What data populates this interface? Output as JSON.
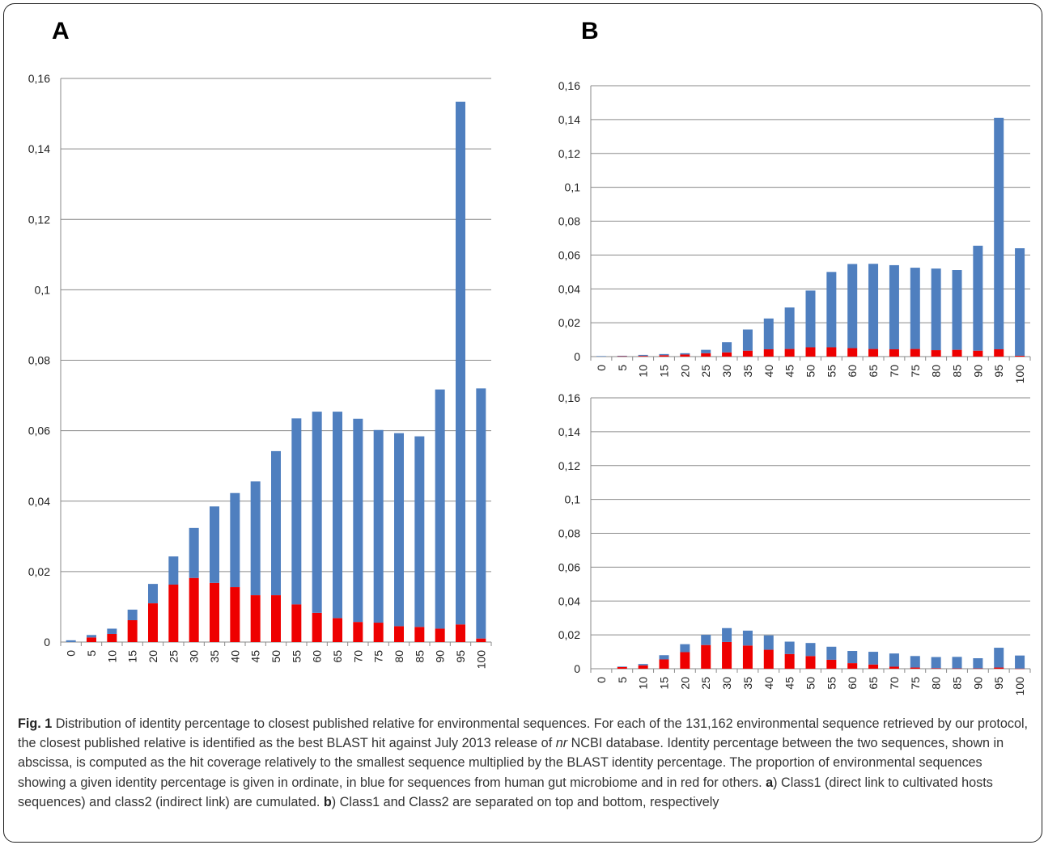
{
  "panels": {
    "a_letter": "A",
    "b_letter": "B"
  },
  "colors": {
    "blue": "#4f7fbf",
    "red": "#ee0000",
    "grid": "#8a8a8a",
    "axis": "#8a8a8a"
  },
  "caption": {
    "fig_label": "Fig. 1",
    "text_1": " Distribution of identity percentage to closest published relative for environmental sequences. For each of the 131,162 environmental sequence retrieved by our protocol, the closest published relative is identified as the best BLAST hit against July 2013 release of ",
    "nr_italic": "nr",
    "text_2": " NCBI database. Identity percentage between the two sequences, shown in abscissa, is computed as the hit coverage relatively to the smallest sequence multiplied by the BLAST identity percentage. The proportion of environmental sequences showing a given identity percentage is given in ordinate, in blue for sequences from human gut microbiome and in red for others. ",
    "a_label": "a",
    "a_text": ") Class1 (direct link to cultivated hosts sequences) and class2 (indirect link) are cumulated. ",
    "b_label": "b",
    "b_text": ") Class1 and Class2 are separated on top and bottom, respectively"
  },
  "chart_data": [
    {
      "panel": "A",
      "type": "bar",
      "stacked": true,
      "categories": [
        "0",
        "5",
        "10",
        "15",
        "20",
        "25",
        "30",
        "35",
        "40",
        "45",
        "50",
        "55",
        "60",
        "65",
        "70",
        "75",
        "80",
        "85",
        "90",
        "95",
        "100"
      ],
      "series": [
        {
          "color": "red",
          "values": [
            0.0,
            0.0013,
            0.0023,
            0.0062,
            0.011,
            0.0163,
            0.0182,
            0.0168,
            0.0156,
            0.0133,
            0.0133,
            0.0107,
            0.0083,
            0.0068,
            0.0057,
            0.0055,
            0.0045,
            0.0043,
            0.0038,
            0.005,
            0.001
          ]
        },
        {
          "color": "blue",
          "values": [
            0.0005,
            0.0007,
            0.0015,
            0.003,
            0.0055,
            0.008,
            0.0142,
            0.0217,
            0.0267,
            0.0323,
            0.0409,
            0.0528,
            0.0571,
            0.0586,
            0.0577,
            0.0547,
            0.0548,
            0.0541,
            0.0679,
            0.1484,
            0.071
          ]
        }
      ],
      "yticks": [
        "0",
        "0,02",
        "0,04",
        "0,06",
        "0,08",
        "0,1",
        "0,12",
        "0,14",
        "0,16"
      ],
      "ylim": [
        0,
        0.16
      ],
      "grid": true
    },
    {
      "panel": "B-top",
      "type": "bar",
      "stacked": true,
      "categories": [
        "0",
        "5",
        "10",
        "15",
        "20",
        "25",
        "30",
        "35",
        "40",
        "45",
        "50",
        "55",
        "60",
        "65",
        "70",
        "75",
        "80",
        "85",
        "90",
        "95",
        "100"
      ],
      "series": [
        {
          "color": "red",
          "values": [
            0.0,
            0.0002,
            0.0004,
            0.0008,
            0.0012,
            0.002,
            0.0025,
            0.0035,
            0.0043,
            0.0045,
            0.0055,
            0.0055,
            0.005,
            0.0045,
            0.0043,
            0.0045,
            0.0038,
            0.004,
            0.0035,
            0.0043,
            0.0005
          ]
        },
        {
          "color": "blue",
          "values": [
            0.0003,
            0.0003,
            0.0006,
            0.0007,
            0.0008,
            0.002,
            0.006,
            0.0125,
            0.0182,
            0.0245,
            0.0335,
            0.0445,
            0.0497,
            0.0503,
            0.0497,
            0.048,
            0.0482,
            0.0471,
            0.062,
            0.1367,
            0.0635
          ]
        }
      ],
      "yticks": [
        "0",
        "0,02",
        "0,04",
        "0,06",
        "0,08",
        "0,1",
        "0,12",
        "0,14",
        "0,16"
      ],
      "ylim": [
        0,
        0.16
      ],
      "grid": true
    },
    {
      "panel": "B-bottom",
      "type": "bar",
      "stacked": true,
      "categories": [
        "0",
        "5",
        "10",
        "15",
        "20",
        "25",
        "30",
        "35",
        "40",
        "45",
        "50",
        "55",
        "60",
        "65",
        "70",
        "75",
        "80",
        "85",
        "90",
        "95",
        "100"
      ],
      "series": [
        {
          "color": "red",
          "values": [
            0.0,
            0.001,
            0.002,
            0.0055,
            0.0098,
            0.014,
            0.0158,
            0.0137,
            0.0112,
            0.0087,
            0.0075,
            0.0053,
            0.0033,
            0.0025,
            0.0012,
            0.0007,
            0.0003,
            0.0002,
            0.0002,
            0.0007,
            0.0001
          ]
        },
        {
          "color": "blue",
          "values": [
            0.0,
            0.0003,
            0.0008,
            0.0025,
            0.0047,
            0.006,
            0.0082,
            0.0088,
            0.0085,
            0.0073,
            0.0077,
            0.0077,
            0.0072,
            0.0075,
            0.0078,
            0.0068,
            0.0066,
            0.0068,
            0.006,
            0.0117,
            0.0077
          ]
        }
      ],
      "yticks": [
        "0",
        "0,02",
        "0,04",
        "0,06",
        "0,08",
        "0,1",
        "0,12",
        "0,14",
        "0,16"
      ],
      "ylim": [
        0,
        0.16
      ],
      "grid": true
    }
  ]
}
